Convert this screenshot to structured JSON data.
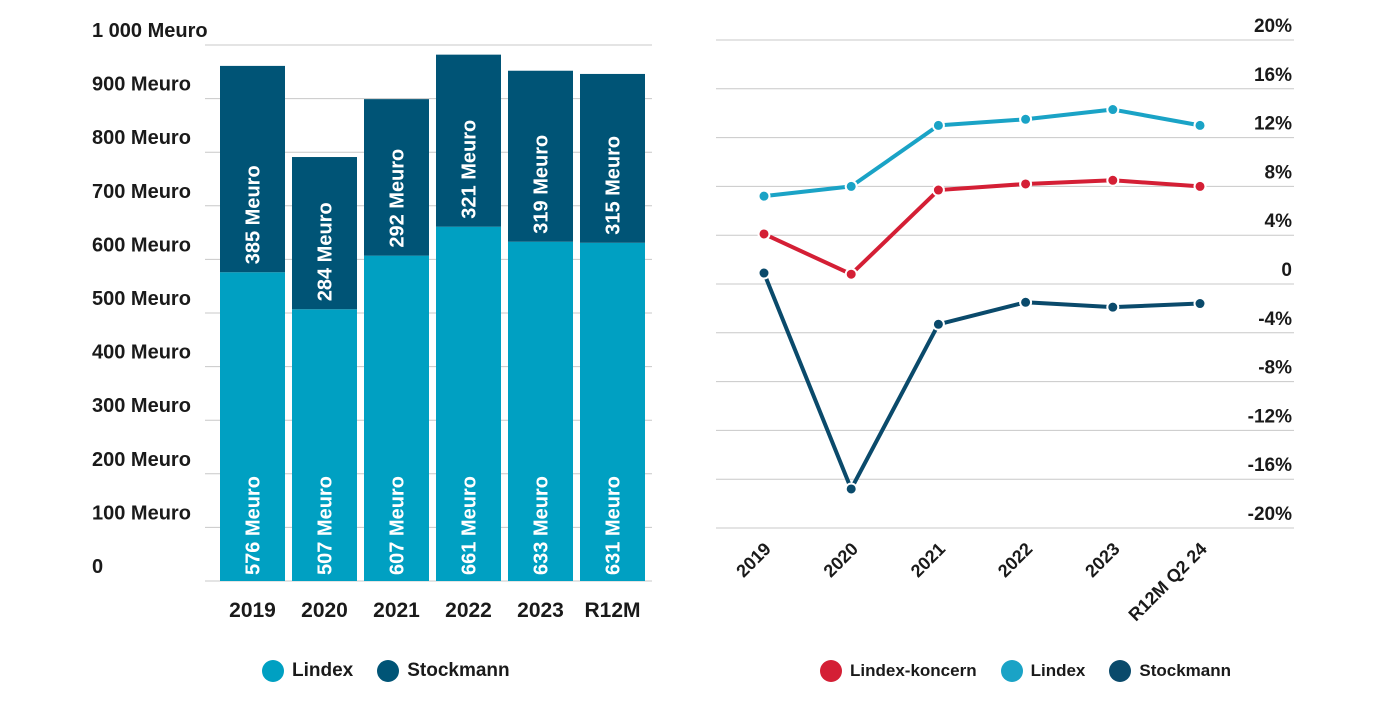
{
  "chart_data": [
    {
      "type": "bar",
      "stacked": true,
      "categories": [
        "2019",
        "2020",
        "2021",
        "2022",
        "2023",
        "R12M"
      ],
      "series": [
        {
          "name": "Lindex",
          "values": [
            576,
            507,
            607,
            661,
            633,
            631
          ],
          "labels": [
            "576 Meuro",
            "507 Meuro",
            "607 Meuro",
            "661 Meuro",
            "633 Meuro",
            "631 Meuro"
          ],
          "color": "#00a0c2"
        },
        {
          "name": "Stockmann",
          "values": [
            385,
            284,
            292,
            321,
            319,
            315
          ],
          "labels": [
            "385 Meuro",
            "284 Meuro",
            "292 Meuro",
            "321 Meuro",
            "319 Meuro",
            "315 Meuro"
          ],
          "color": "#005476"
        }
      ],
      "ylim": [
        0,
        1000
      ],
      "yticks": [
        0,
        100,
        200,
        300,
        400,
        500,
        600,
        700,
        800,
        900,
        1000
      ],
      "ytick_labels": [
        "0",
        "100 Meuro",
        "200 Meuro",
        "300 Meuro",
        "400 Meuro",
        "500 Meuro",
        "600 Meuro",
        "700 Meuro",
        "800 Meuro",
        "900 Meuro",
        "1 000 Meuro"
      ],
      "grid": true,
      "legend_position": "bottom"
    },
    {
      "type": "line",
      "categories": [
        "2019",
        "2020",
        "2021",
        "2022",
        "2023",
        "R12M Q2 24"
      ],
      "series": [
        {
          "name": "Lindex-koncern",
          "values": [
            4.1,
            0.8,
            7.7,
            8.2,
            8.5,
            8.0
          ],
          "color": "#d41f35"
        },
        {
          "name": "Lindex",
          "values": [
            7.2,
            8.0,
            13.0,
            13.5,
            14.3,
            13.0
          ],
          "color": "#1aa3c6"
        },
        {
          "name": "Stockmann",
          "values": [
            0.9,
            -16.8,
            -3.3,
            -1.5,
            -1.9,
            -1.6
          ],
          "color": "#0a4a6b"
        }
      ],
      "ylim": [
        -20,
        20
      ],
      "yticks": [
        -20,
        -16,
        -12,
        -8,
        -4,
        0,
        4,
        8,
        12,
        16,
        20
      ],
      "ytick_labels": [
        "-20%",
        "-16%",
        "-12%",
        "-8%",
        "-4%",
        "0",
        "4%",
        "8%",
        "12%",
        "16%",
        "20%"
      ],
      "yaxis_position": "right",
      "grid": true,
      "legend_position": "bottom"
    }
  ]
}
